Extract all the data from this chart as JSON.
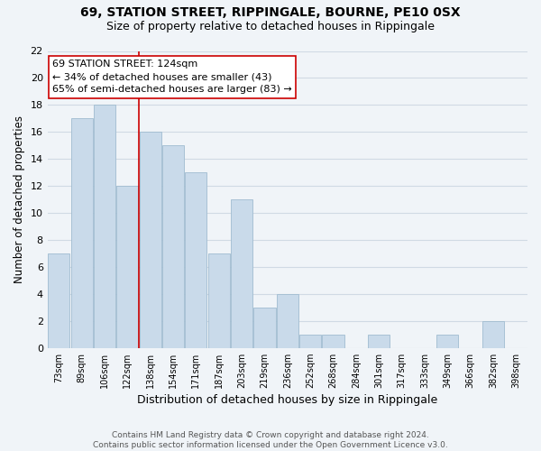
{
  "title": "69, STATION STREET, RIPPINGALE, BOURNE, PE10 0SX",
  "subtitle": "Size of property relative to detached houses in Rippingale",
  "xlabel": "Distribution of detached houses by size in Rippingale",
  "ylabel": "Number of detached properties",
  "bar_labels": [
    "73sqm",
    "89sqm",
    "106sqm",
    "122sqm",
    "138sqm",
    "154sqm",
    "171sqm",
    "187sqm",
    "203sqm",
    "219sqm",
    "236sqm",
    "252sqm",
    "268sqm",
    "284sqm",
    "301sqm",
    "317sqm",
    "333sqm",
    "349sqm",
    "366sqm",
    "382sqm",
    "398sqm"
  ],
  "bar_values": [
    7,
    17,
    18,
    12,
    16,
    15,
    13,
    7,
    11,
    3,
    4,
    1,
    1,
    0,
    1,
    0,
    0,
    1,
    0,
    2,
    0
  ],
  "bar_color": "#c9daea",
  "bar_edge_color": "#a0bcd0",
  "vline_color": "#cc0000",
  "annotation_text": "69 STATION STREET: 124sqm\n← 34% of detached houses are smaller (43)\n65% of semi-detached houses are larger (83) →",
  "annotation_box_color": "#ffffff",
  "annotation_box_edge": "#cc0000",
  "ylim": [
    0,
    22
  ],
  "yticks": [
    0,
    2,
    4,
    6,
    8,
    10,
    12,
    14,
    16,
    18,
    20,
    22
  ],
  "footer": "Contains HM Land Registry data © Crown copyright and database right 2024.\nContains public sector information licensed under the Open Government Licence v3.0.",
  "background_color": "#f0f4f8",
  "grid_color": "#d0dae4",
  "title_fontsize": 10,
  "subtitle_fontsize": 9
}
